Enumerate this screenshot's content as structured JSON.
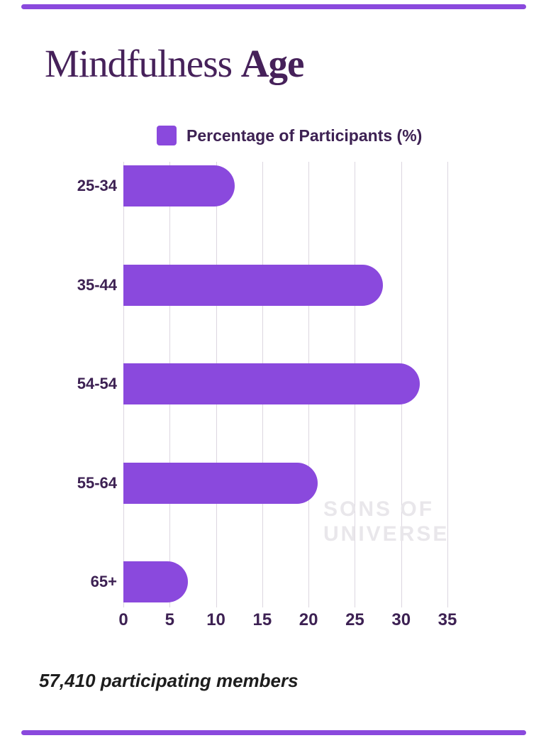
{
  "page": {
    "title": {
      "regular": "Mindfulness",
      "bold": "Age"
    },
    "footer": "57,410 participating members",
    "watermark": {
      "line1": "SONS OF",
      "line2": "UNIVERSE"
    }
  },
  "legend": {
    "label": "Percentage of Participants (%)"
  },
  "colors": {
    "bar": "#8a49dd",
    "title": "#46215a",
    "text": "#3d2153",
    "grid": "#dcd6e0",
    "watermark": "#e9e7eb",
    "footer_text": "#1d1d1d"
  },
  "chart_data": {
    "type": "bar",
    "orientation": "horizontal",
    "title": "Mindfulness Age",
    "categories": [
      "25-34",
      "35-44",
      "54-54",
      "55-64",
      "65+"
    ],
    "values": [
      12,
      28,
      32,
      21,
      7
    ],
    "series_name": "Percentage of Participants (%)",
    "xlabel": "",
    "ylabel": "",
    "x_ticks": [
      0,
      5,
      10,
      15,
      20,
      25,
      30,
      35
    ],
    "xlim": [
      0,
      35
    ],
    "grid": "vertical",
    "legend_position": "top"
  }
}
